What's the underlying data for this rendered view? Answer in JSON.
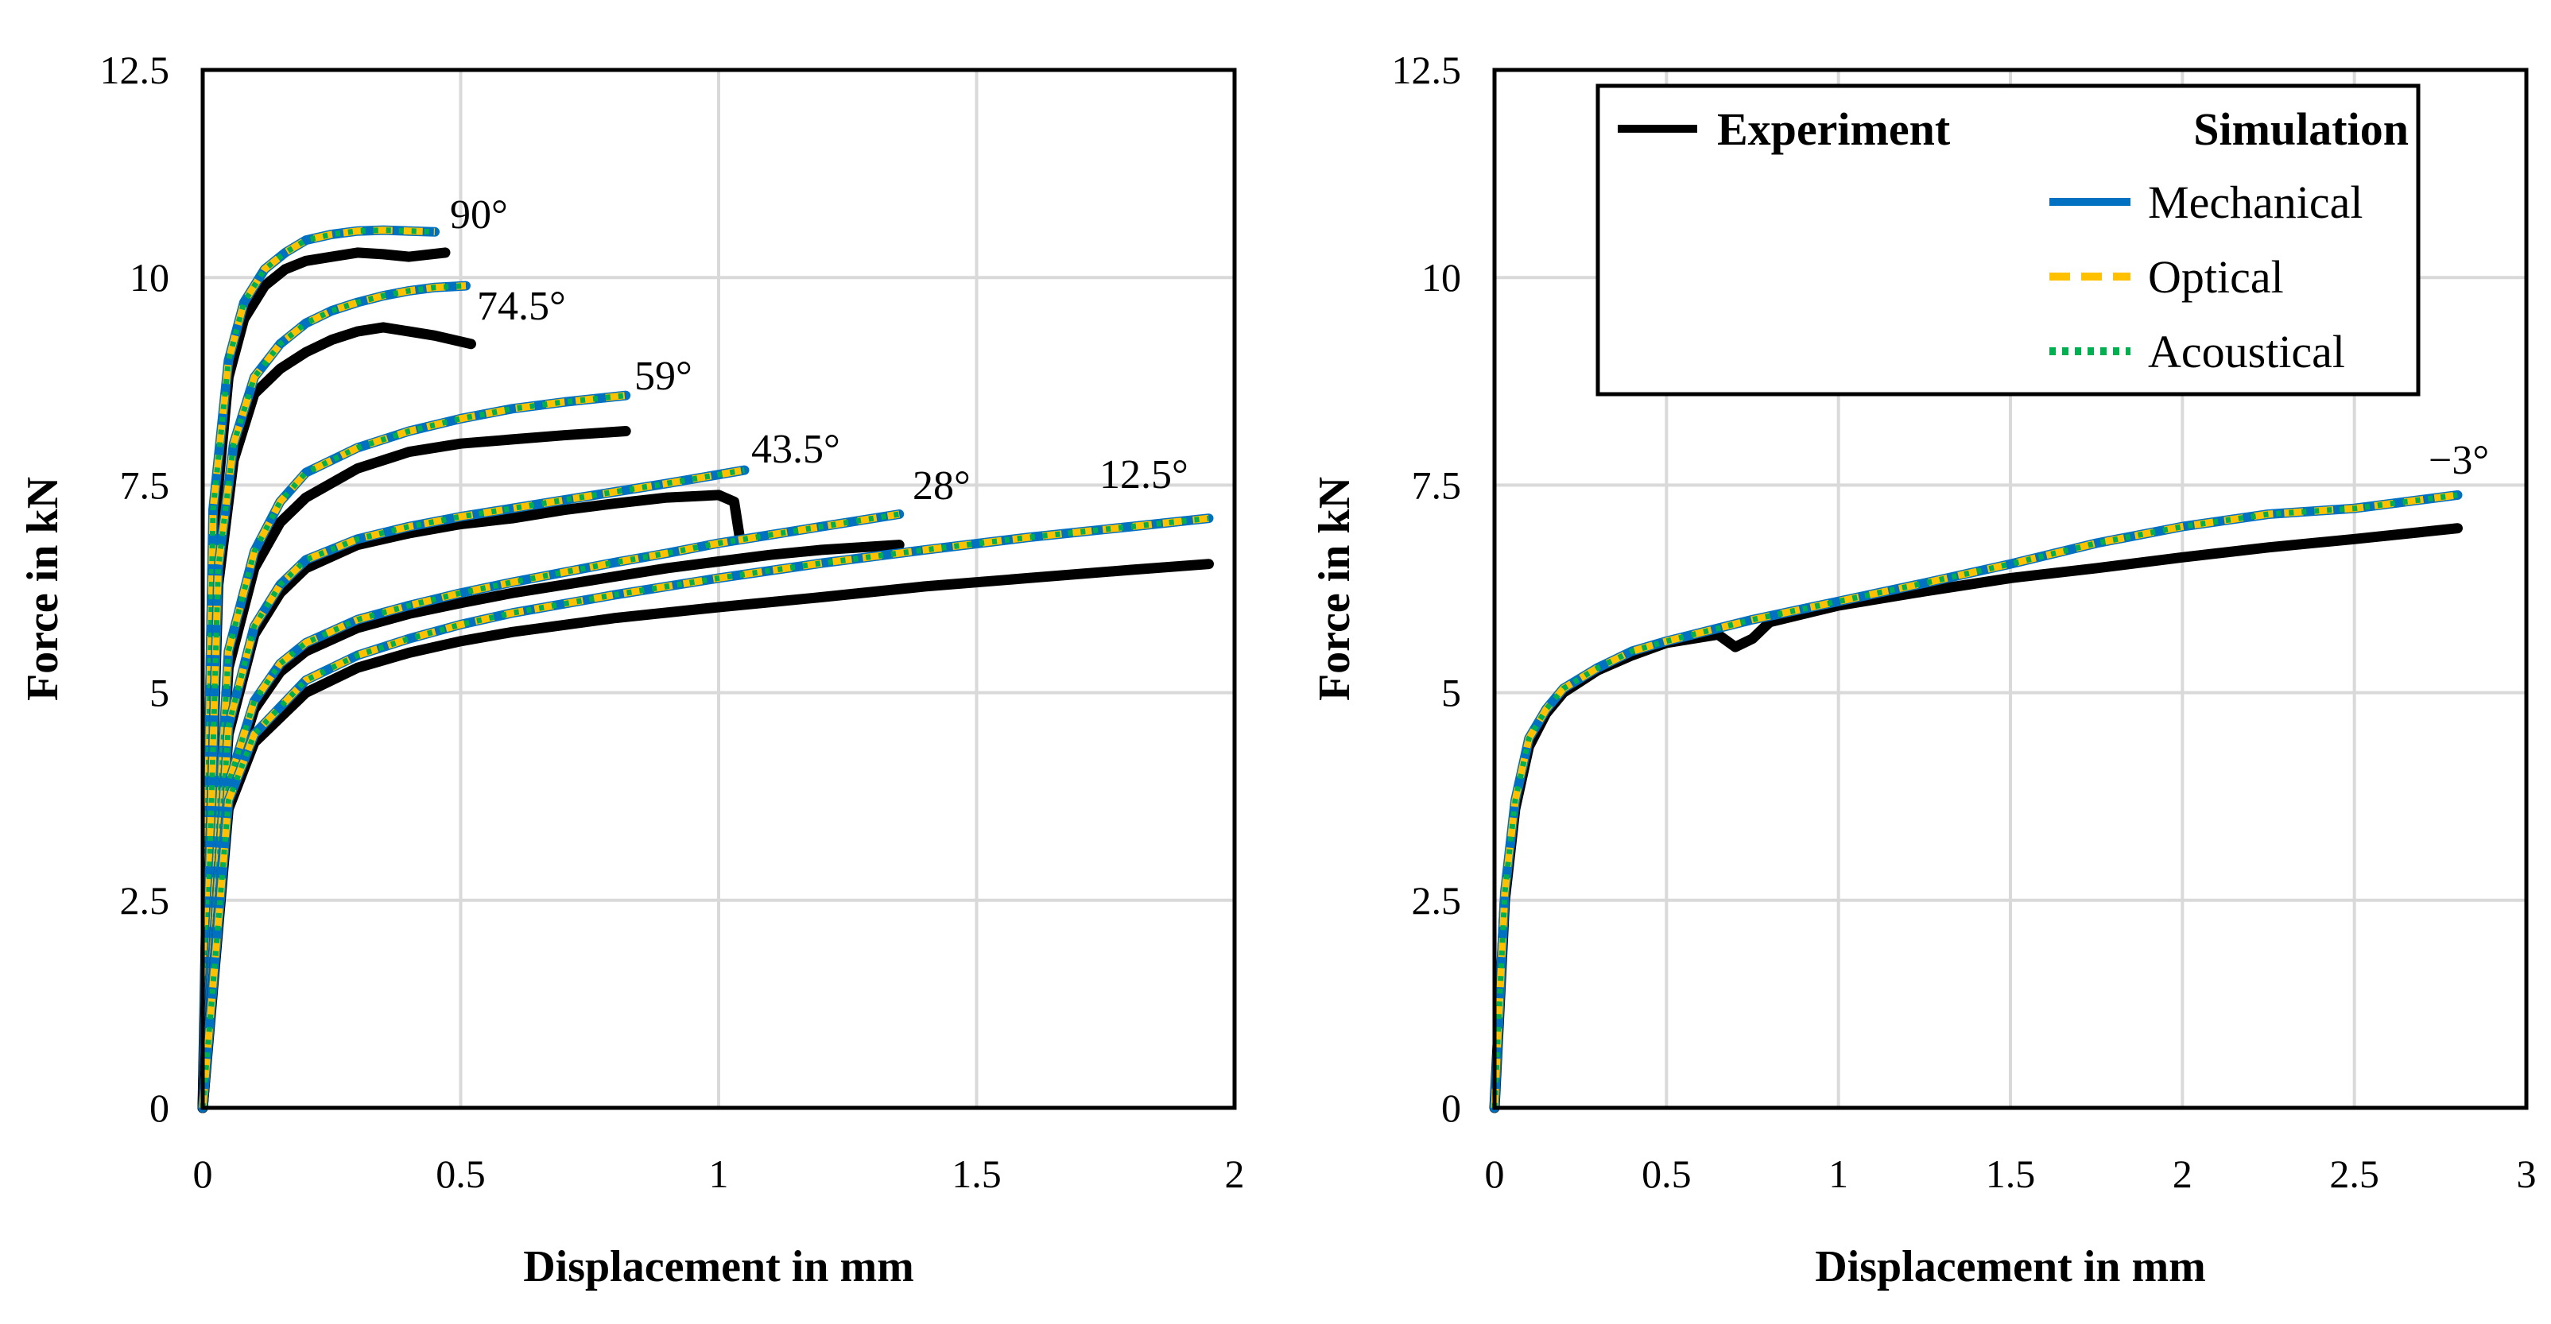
{
  "colors": {
    "experiment": "#000000",
    "mechanical": "#0070C0",
    "optical": "#FFC000",
    "acoustical": "#00B050",
    "grid": "#D9D9D9"
  },
  "legend": {
    "experiment": "Experiment",
    "simulation": "Simulation",
    "mechanical": "Mechanical",
    "optical": "Optical",
    "acoustical": "Acoustical"
  },
  "chart_data": [
    {
      "type": "line",
      "xlabel": "Displacement in mm",
      "ylabel": "Force  in kN",
      "xlim": [
        0,
        2
      ],
      "ylim": [
        0,
        12.5
      ],
      "xticks": [
        "0",
        "0.5",
        "1",
        "1.5",
        "2"
      ],
      "yticks": [
        "0",
        "2.5",
        "5",
        "7.5",
        "10",
        "12.5"
      ],
      "grid": true,
      "series": [
        {
          "name": "90°",
          "simulation": {
            "x": [
              0,
              0.02,
              0.05,
              0.08,
              0.12,
              0.16,
              0.2,
              0.25,
              0.3,
              0.35,
              0.4,
              0.45
            ],
            "y": [
              0,
              7.2,
              9.0,
              9.7,
              10.1,
              10.3,
              10.45,
              10.52,
              10.56,
              10.57,
              10.56,
              10.55
            ]
          },
          "experiment": {
            "x": [
              0,
              0.02,
              0.05,
              0.08,
              0.12,
              0.16,
              0.2,
              0.25,
              0.3,
              0.35,
              0.4,
              0.47
            ],
            "y": [
              0,
              6.8,
              8.8,
              9.5,
              9.9,
              10.1,
              10.2,
              10.25,
              10.3,
              10.28,
              10.25,
              10.3
            ]
          }
        },
        {
          "name": "74.5°",
          "simulation": {
            "x": [
              0,
              0.03,
              0.06,
              0.1,
              0.15,
              0.2,
              0.25,
              0.3,
              0.35,
              0.4,
              0.45,
              0.51
            ],
            "y": [
              0,
              6.5,
              8.0,
              8.8,
              9.2,
              9.45,
              9.6,
              9.7,
              9.78,
              9.84,
              9.88,
              9.9
            ]
          },
          "experiment": {
            "x": [
              0,
              0.03,
              0.06,
              0.1,
              0.15,
              0.2,
              0.25,
              0.3,
              0.35,
              0.4,
              0.45,
              0.52
            ],
            "y": [
              0,
              6.3,
              7.8,
              8.6,
              8.9,
              9.1,
              9.25,
              9.35,
              9.4,
              9.35,
              9.3,
              9.2
            ]
          }
        },
        {
          "name": "59°",
          "simulation": {
            "x": [
              0,
              0.05,
              0.1,
              0.15,
              0.2,
              0.3,
              0.4,
              0.5,
              0.6,
              0.7,
              0.82
            ],
            "y": [
              0,
              5.5,
              6.7,
              7.3,
              7.65,
              7.95,
              8.15,
              8.3,
              8.42,
              8.5,
              8.58
            ]
          },
          "experiment": {
            "x": [
              0,
              0.05,
              0.1,
              0.15,
              0.2,
              0.3,
              0.4,
              0.5,
              0.6,
              0.7,
              0.82
            ],
            "y": [
              0,
              5.3,
              6.5,
              7.05,
              7.35,
              7.7,
              7.9,
              8.0,
              8.05,
              8.1,
              8.15
            ]
          }
        },
        {
          "name": "43.5°",
          "simulation": {
            "x": [
              0,
              0.05,
              0.1,
              0.15,
              0.2,
              0.3,
              0.4,
              0.5,
              0.6,
              0.7,
              0.8,
              0.9,
              1.05
            ],
            "y": [
              0,
              4.6,
              5.8,
              6.3,
              6.6,
              6.85,
              7.0,
              7.12,
              7.22,
              7.32,
              7.42,
              7.52,
              7.68
            ]
          },
          "experiment": {
            "x": [
              0,
              0.05,
              0.1,
              0.15,
              0.2,
              0.3,
              0.4,
              0.5,
              0.6,
              0.7,
              0.8,
              0.9,
              1.0,
              1.03,
              1.04
            ],
            "y": [
              0,
              4.5,
              5.7,
              6.2,
              6.5,
              6.78,
              6.92,
              7.03,
              7.1,
              7.2,
              7.28,
              7.35,
              7.38,
              7.3,
              6.9
            ]
          }
        },
        {
          "name": "28°",
          "simulation": {
            "x": [
              0,
              0.05,
              0.1,
              0.15,
              0.2,
              0.3,
              0.4,
              0.5,
              0.6,
              0.7,
              0.8,
              0.9,
              1.0,
              1.1,
              1.2,
              1.35
            ],
            "y": [
              0,
              3.9,
              4.9,
              5.35,
              5.6,
              5.88,
              6.05,
              6.2,
              6.33,
              6.45,
              6.57,
              6.68,
              6.8,
              6.9,
              7.0,
              7.15
            ]
          },
          "experiment": {
            "x": [
              0,
              0.05,
              0.1,
              0.15,
              0.2,
              0.3,
              0.4,
              0.5,
              0.6,
              0.7,
              0.8,
              0.9,
              1.0,
              1.1,
              1.2,
              1.35
            ],
            "y": [
              0,
              3.8,
              4.8,
              5.25,
              5.5,
              5.78,
              5.95,
              6.08,
              6.2,
              6.3,
              6.4,
              6.5,
              6.58,
              6.66,
              6.72,
              6.78
            ]
          }
        },
        {
          "name": "12.5°",
          "simulation": {
            "x": [
              0,
              0.05,
              0.1,
              0.2,
              0.3,
              0.4,
              0.5,
              0.6,
              0.8,
              1.0,
              1.2,
              1.4,
              1.6,
              1.8,
              1.95
            ],
            "y": [
              0,
              3.7,
              4.5,
              5.15,
              5.45,
              5.65,
              5.82,
              5.96,
              6.18,
              6.38,
              6.56,
              6.72,
              6.87,
              7.0,
              7.1
            ]
          },
          "experiment": {
            "x": [
              0,
              0.05,
              0.1,
              0.2,
              0.3,
              0.4,
              0.5,
              0.6,
              0.8,
              1.0,
              1.2,
              1.4,
              1.6,
              1.8,
              1.95
            ],
            "y": [
              0,
              3.6,
              4.4,
              5.0,
              5.3,
              5.48,
              5.62,
              5.73,
              5.9,
              6.03,
              6.15,
              6.28,
              6.38,
              6.48,
              6.55
            ]
          }
        }
      ]
    },
    {
      "type": "line",
      "xlabel": "Displacement in mm",
      "ylabel": "Force  in kN",
      "xlim": [
        0,
        3
      ],
      "ylim": [
        0,
        12.5
      ],
      "xticks": [
        "0",
        "0.5",
        "1",
        "1.5",
        "2",
        "2.5",
        "3"
      ],
      "yticks": [
        "0",
        "2.5",
        "5",
        "7.5",
        "10",
        "12.5"
      ],
      "grid": true,
      "legend_position": "top-right",
      "series": [
        {
          "name": "−3°",
          "simulation": {
            "x": [
              0,
              0.03,
              0.06,
              0.1,
              0.15,
              0.2,
              0.3,
              0.4,
              0.5,
              0.75,
              1.0,
              1.25,
              1.5,
              1.75,
              2.0,
              2.25,
              2.5,
              2.8
            ],
            "y": [
              0,
              2.6,
              3.7,
              4.45,
              4.8,
              5.05,
              5.3,
              5.5,
              5.62,
              5.88,
              6.1,
              6.32,
              6.55,
              6.8,
              7.0,
              7.15,
              7.22,
              7.38
            ]
          },
          "experiment": {
            "x": [
              0,
              0.03,
              0.06,
              0.1,
              0.15,
              0.2,
              0.3,
              0.4,
              0.5,
              0.65,
              0.7,
              0.75,
              0.8,
              1.0,
              1.25,
              1.5,
              1.75,
              2.0,
              2.25,
              2.5,
              2.8
            ],
            "y": [
              0,
              2.5,
              3.6,
              4.35,
              4.75,
              5.0,
              5.27,
              5.45,
              5.6,
              5.7,
              5.55,
              5.65,
              5.85,
              6.05,
              6.22,
              6.38,
              6.5,
              6.63,
              6.75,
              6.85,
              6.98
            ]
          }
        }
      ]
    }
  ]
}
